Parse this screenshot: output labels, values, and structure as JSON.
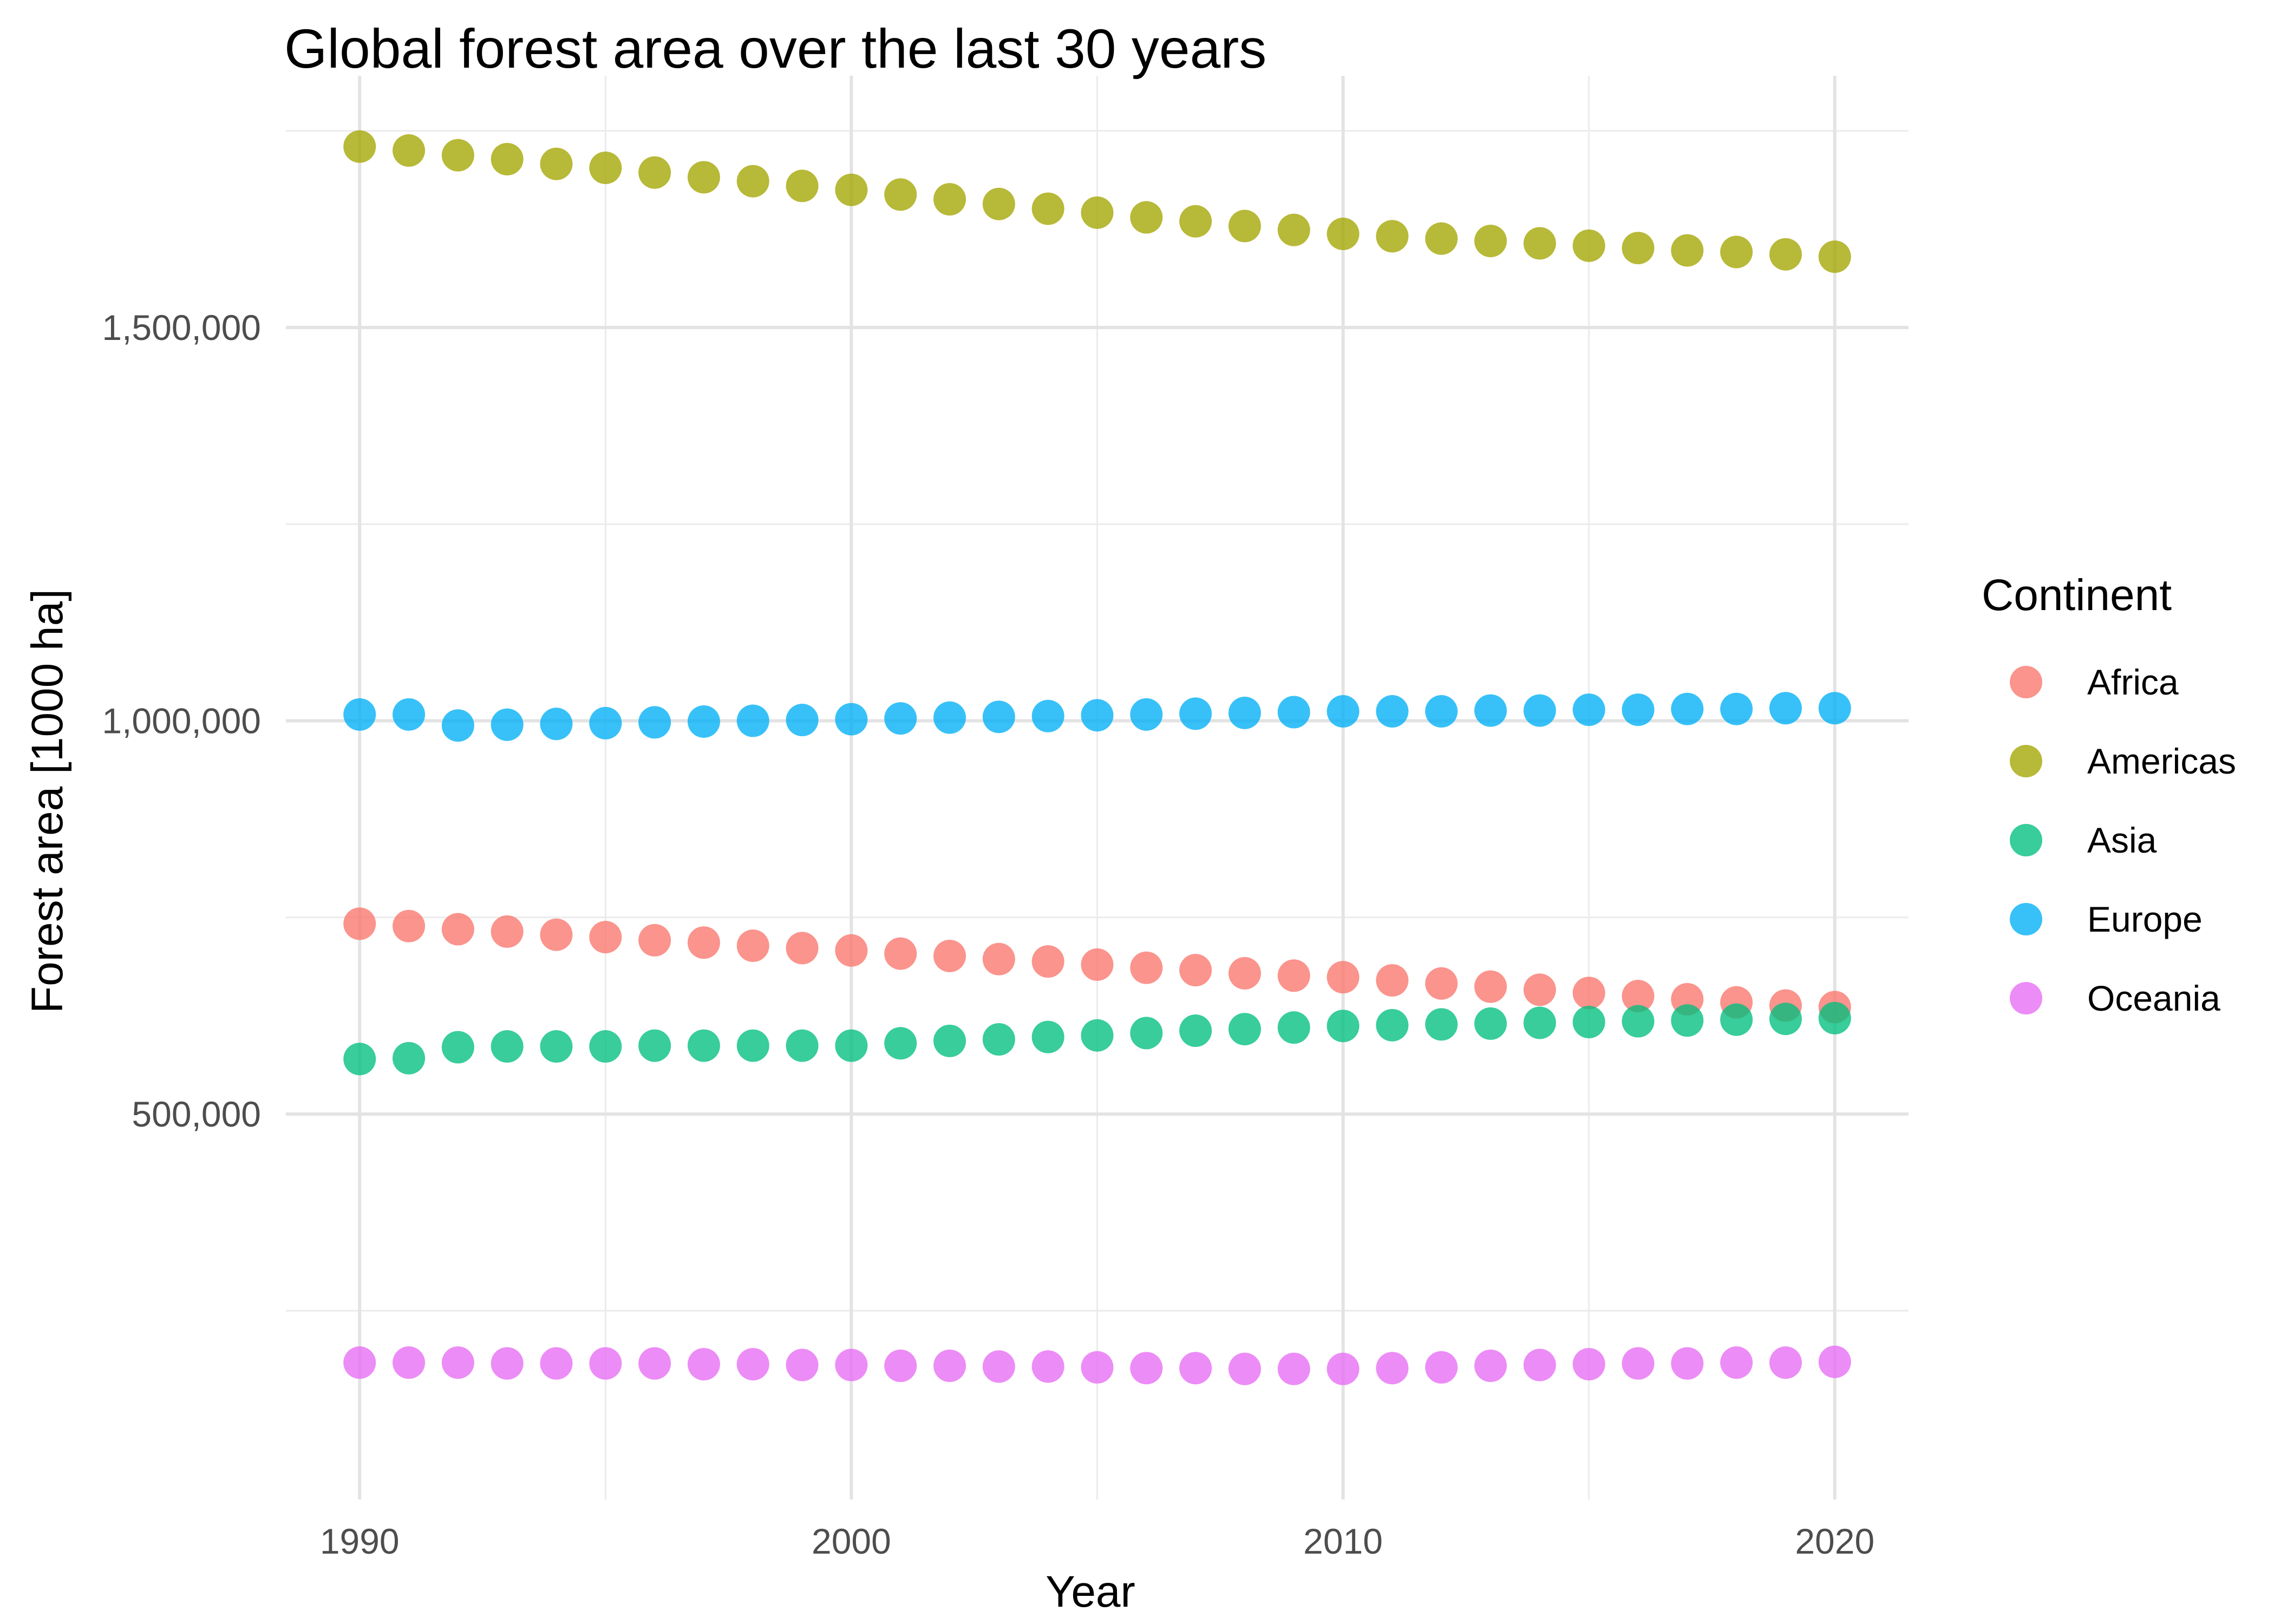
{
  "chart_data": {
    "type": "scatter",
    "title": "Global forest area over the last 30 years",
    "xlabel": "Year",
    "ylabel": "Forest area [1000 ha]",
    "xlim": [
      1988.5,
      2021.5
    ],
    "ylim": [
      10000,
      1820000
    ],
    "x_ticks": [
      1990,
      2000,
      2010,
      2020
    ],
    "x_tick_labels": [
      "1990",
      "2000",
      "2010",
      "2020"
    ],
    "y_ticks": [
      500000,
      1000000,
      1500000
    ],
    "y_tick_labels": [
      "500,000",
      "1,000,000",
      "1,500,000"
    ],
    "y_minor_gridlines": [
      250000,
      750000,
      1250000,
      1750000
    ],
    "x_minor_gridlines": [
      1995,
      2005,
      2015
    ],
    "grid": true,
    "legend": {
      "title": "Continent",
      "placement": "right"
    },
    "x": [
      1990,
      1991,
      1992,
      1993,
      1994,
      1995,
      1996,
      1997,
      1998,
      1999,
      2000,
      2001,
      2002,
      2003,
      2004,
      2005,
      2006,
      2007,
      2008,
      2009,
      2010,
      2011,
      2012,
      2013,
      2014,
      2015,
      2016,
      2017,
      2018,
      2019,
      2020
    ],
    "series": [
      {
        "name": "Africa",
        "color": "#F8766D",
        "values": [
          742000,
          739000,
          735000,
          732000,
          728000,
          725000,
          721000,
          718000,
          714000,
          711000,
          708000,
          704000,
          701000,
          697000,
          694000,
          690000,
          686000,
          683000,
          679000,
          676000,
          674000,
          670000,
          666000,
          662000,
          658000,
          654000,
          650000,
          646000,
          642000,
          638000,
          636000
        ]
      },
      {
        "name": "Americas",
        "color": "#A3A500",
        "values": [
          1730000,
          1725000,
          1719000,
          1714000,
          1708000,
          1703000,
          1697000,
          1691000,
          1686000,
          1680000,
          1675000,
          1669000,
          1663000,
          1657000,
          1651000,
          1646000,
          1640000,
          1635000,
          1629000,
          1624000,
          1619000,
          1616000,
          1613000,
          1610000,
          1607000,
          1604000,
          1601000,
          1598000,
          1596000,
          1593000,
          1590000
        ]
      },
      {
        "name": "Asia",
        "color": "#00BF7D",
        "values": [
          570000,
          571000,
          585000,
          586000,
          586000,
          586000,
          587000,
          587000,
          587000,
          587000,
          587000,
          590000,
          593000,
          595000,
          598000,
          600000,
          603000,
          606000,
          608000,
          610000,
          612000,
          613000,
          614000,
          615000,
          616000,
          617000,
          618000,
          619000,
          620000,
          621000,
          622000
        ]
      },
      {
        "name": "Europe",
        "color": "#00B0F6",
        "values": [
          1008000,
          1008000,
          994000,
          995000,
          996000,
          997000,
          998000,
          999000,
          1000000,
          1001000,
          1002000,
          1003000,
          1004000,
          1005000,
          1006000,
          1007000,
          1008000,
          1009000,
          1010000,
          1011000,
          1012000,
          1012000,
          1012000,
          1013000,
          1013000,
          1014000,
          1014000,
          1015000,
          1015000,
          1016000,
          1016000
        ]
      },
      {
        "name": "Oceania",
        "color": "#E76BF3",
        "values": [
          184000,
          184000,
          184000,
          183000,
          183000,
          183000,
          183000,
          182000,
          182000,
          181000,
          181000,
          180000,
          180000,
          179000,
          179000,
          178000,
          177000,
          177000,
          176000,
          176000,
          176000,
          177000,
          178000,
          180000,
          181000,
          182000,
          183000,
          183000,
          184000,
          184000,
          185000
        ]
      }
    ]
  }
}
